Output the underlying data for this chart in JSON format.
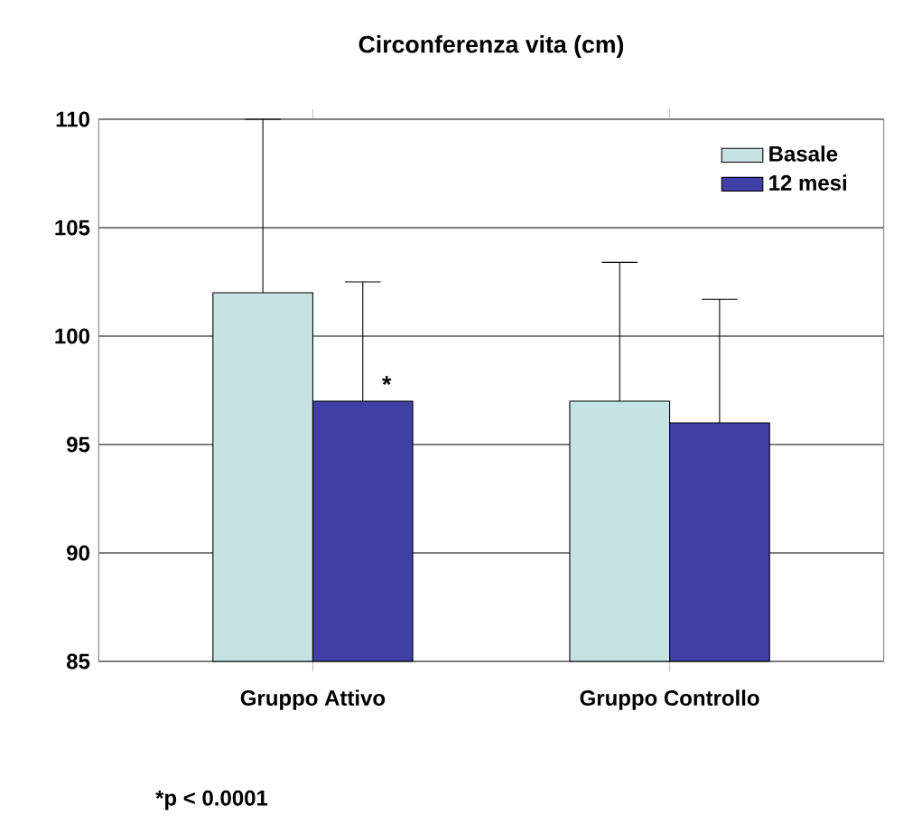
{
  "chart_data": {
    "type": "bar",
    "title": "Circonferenza vita (cm)",
    "categories": [
      "Gruppo Attivo",
      "Gruppo Controllo"
    ],
    "series": [
      {
        "name": "Basale",
        "color": "#c5e3e3",
        "values": [
          102.0,
          97.0
        ],
        "errors": [
          [
            102.0,
            110.0
          ],
          [
            97.0,
            103.4
          ]
        ]
      },
      {
        "name": "12 mesi",
        "color": "#3f3fa5",
        "values": [
          97.0,
          96.0
        ],
        "errors": [
          [
            97.0,
            102.5
          ],
          [
            96.0,
            101.7
          ]
        ]
      }
    ],
    "ylim": [
      85,
      110
    ],
    "yticks": [
      85,
      90,
      95,
      100,
      105,
      110
    ],
    "grid": "y",
    "legend": "top right",
    "annotations": [
      {
        "text": "*",
        "x": "Gruppo Attivo",
        "y": 97.0
      },
      "*p < 0.0001"
    ]
  }
}
